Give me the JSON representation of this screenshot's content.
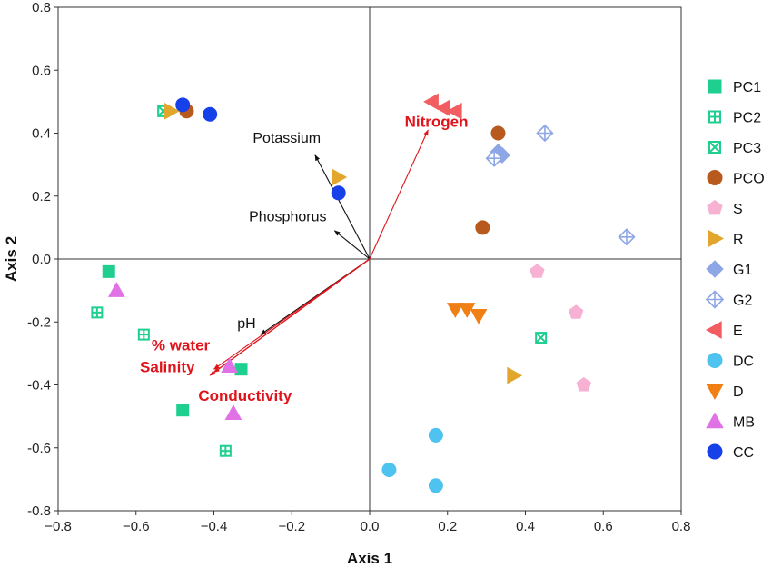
{
  "chart_data": {
    "type": "scatter",
    "title": "",
    "xlabel": "Axis 1",
    "ylabel": "Axis 2",
    "xlim": [
      -0.8,
      0.8
    ],
    "ylim": [
      -0.8,
      0.8
    ],
    "xticks": [
      "−0.8",
      "−0.6",
      "−0.4",
      "−0.2",
      "0.0",
      "0.2",
      "0.4",
      "0.6",
      "0.8"
    ],
    "yticks": [
      "0.8",
      "0.6",
      "0.4",
      "0.2",
      "0.0",
      "-0.2",
      "-0.4",
      "-0.6",
      "-0.8"
    ],
    "grid": false,
    "legend_position": "right",
    "series": [
      {
        "name": "PC1",
        "marker": "square",
        "color": "#1fcf8f",
        "points": [
          [
            -0.67,
            -0.04
          ],
          [
            -0.33,
            -0.35
          ],
          [
            -0.48,
            -0.48
          ]
        ]
      },
      {
        "name": "PC2",
        "marker": "square-plus",
        "color": "#1fcf8f",
        "points": [
          [
            -0.7,
            -0.17
          ],
          [
            -0.58,
            -0.24
          ],
          [
            -0.37,
            -0.61
          ],
          [
            -0.53,
            0.47
          ]
        ]
      },
      {
        "name": "PC3",
        "marker": "square-x",
        "color": "#1fcf8f",
        "points": [
          [
            -0.53,
            0.47
          ],
          [
            0.44,
            -0.25
          ]
        ]
      },
      {
        "name": "PCO",
        "marker": "circle",
        "color": "#b85a1e",
        "points": [
          [
            -0.47,
            0.47
          ],
          [
            0.33,
            0.4
          ],
          [
            0.29,
            0.1
          ]
        ]
      },
      {
        "name": "S",
        "marker": "pentagon",
        "color": "#f6b1d3",
        "points": [
          [
            0.43,
            -0.04
          ],
          [
            0.53,
            -0.17
          ],
          [
            0.55,
            -0.4
          ]
        ]
      },
      {
        "name": "R",
        "marker": "triangle-right",
        "color": "#e3a62c",
        "points": [
          [
            -0.51,
            0.47
          ],
          [
            -0.08,
            0.26
          ],
          [
            0.37,
            -0.37
          ]
        ]
      },
      {
        "name": "G1",
        "marker": "diamond",
        "color": "#8da6e6",
        "points": [
          [
            0.32,
            0.32
          ],
          [
            0.33,
            0.34
          ],
          [
            0.34,
            0.33
          ]
        ]
      },
      {
        "name": "G2",
        "marker": "diamond-plus",
        "color": "#8da6e6",
        "points": [
          [
            0.45,
            0.4
          ],
          [
            0.66,
            0.07
          ],
          [
            0.32,
            0.32
          ]
        ]
      },
      {
        "name": "E",
        "marker": "triangle-left",
        "color": "#f25d61",
        "points": [
          [
            0.16,
            0.5
          ],
          [
            0.19,
            0.48
          ],
          [
            0.22,
            0.47
          ]
        ]
      },
      {
        "name": "DC",
        "marker": "circle",
        "color": "#4fc3ef",
        "points": [
          [
            0.05,
            -0.67
          ],
          [
            0.17,
            -0.56
          ],
          [
            0.17,
            -0.72
          ]
        ]
      },
      {
        "name": "D",
        "marker": "triangle-down",
        "color": "#f07f14",
        "points": [
          [
            0.22,
            -0.16
          ],
          [
            0.25,
            -0.16
          ],
          [
            0.28,
            -0.18
          ]
        ]
      },
      {
        "name": "MB",
        "marker": "triangle-up",
        "color": "#e072e6",
        "points": [
          [
            -0.65,
            -0.1
          ],
          [
            -0.36,
            -0.34
          ],
          [
            -0.35,
            -0.49
          ]
        ]
      },
      {
        "name": "CC",
        "marker": "circle",
        "color": "#1640e8",
        "points": [
          [
            -0.48,
            0.49
          ],
          [
            -0.41,
            0.46
          ],
          [
            -0.08,
            0.21
          ]
        ]
      }
    ],
    "vectors": [
      {
        "label": "Potassium",
        "color": "#111111",
        "end": [
          -0.14,
          0.33
        ],
        "style": "normal"
      },
      {
        "label": "Phosphorus",
        "color": "#111111",
        "end": [
          -0.09,
          0.09
        ],
        "style": "normal"
      },
      {
        "label": "Nitrogen",
        "color": "#e0141b",
        "end": [
          0.15,
          0.41
        ],
        "style": "bold"
      },
      {
        "label": "pH",
        "color": "#111111",
        "end": [
          -0.28,
          -0.24
        ],
        "style": "normal"
      },
      {
        "label": "% water",
        "color": "#e0141b",
        "end": [
          -0.4,
          -0.35
        ],
        "style": "bold"
      },
      {
        "label": "Salinity",
        "color": "#e0141b",
        "end": [
          -0.4,
          -0.36
        ],
        "style": "bold"
      },
      {
        "label": "Conductivity",
        "color": "#e0141b",
        "end": [
          -0.41,
          -0.37
        ],
        "style": "bold"
      }
    ]
  }
}
